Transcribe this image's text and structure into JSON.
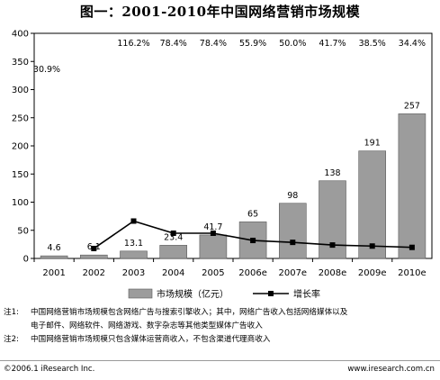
{
  "chart_data": {
    "type": "bar",
    "title": "图一：2001-2010年中国网络营销市场规模",
    "categories": [
      "2001",
      "2002",
      "2003",
      "2004",
      "2005",
      "2006e",
      "2007e",
      "2008e",
      "2009e",
      "2010e"
    ],
    "ylim": [
      0,
      400
    ],
    "yticks": [
      0,
      50,
      100,
      150,
      200,
      250,
      300,
      350,
      400
    ],
    "series": [
      {
        "name": "市场规模（亿元）",
        "type": "bar",
        "values": [
          4.6,
          6.1,
          13.1,
          23.4,
          41.7,
          65,
          98,
          138,
          191,
          257
        ],
        "labels": [
          "4.6",
          "6.1",
          "13.1",
          "23.4",
          "41.7",
          "65",
          "98",
          "138",
          "191",
          "257"
        ],
        "color": "#9c9c9c"
      },
      {
        "name": "增长率",
        "type": "line",
        "values": [
          null,
          30.9,
          116.2,
          78.4,
          78.4,
          55.9,
          50.0,
          41.7,
          38.5,
          34.4
        ],
        "labels": [
          "",
          "30.9%",
          "116.2%",
          "78.4%",
          "78.4%",
          "55.9%",
          "50.0%",
          "41.7%",
          "38.5%",
          "34.4%"
        ],
        "color": "#000000"
      }
    ],
    "legend_position": "bottom",
    "grid": false
  },
  "notes": [
    {
      "label": "注1:",
      "lines": [
        "中国网络营销市场规模包含网络广告与搜索引擎收入；其中，网络广告收入包括网络媒体以及",
        "电子邮件、网络软件、网络游戏、数字杂志等其他类型媒体广告收入"
      ]
    },
    {
      "label": "注2:",
      "lines": [
        "中国网络营销市场规模只包含媒体运营商收入，不包含渠道代理商收入"
      ]
    }
  ],
  "footer": {
    "left": "©2006.1 iResearch Inc.",
    "right": "www.iresearch.com.cn"
  }
}
